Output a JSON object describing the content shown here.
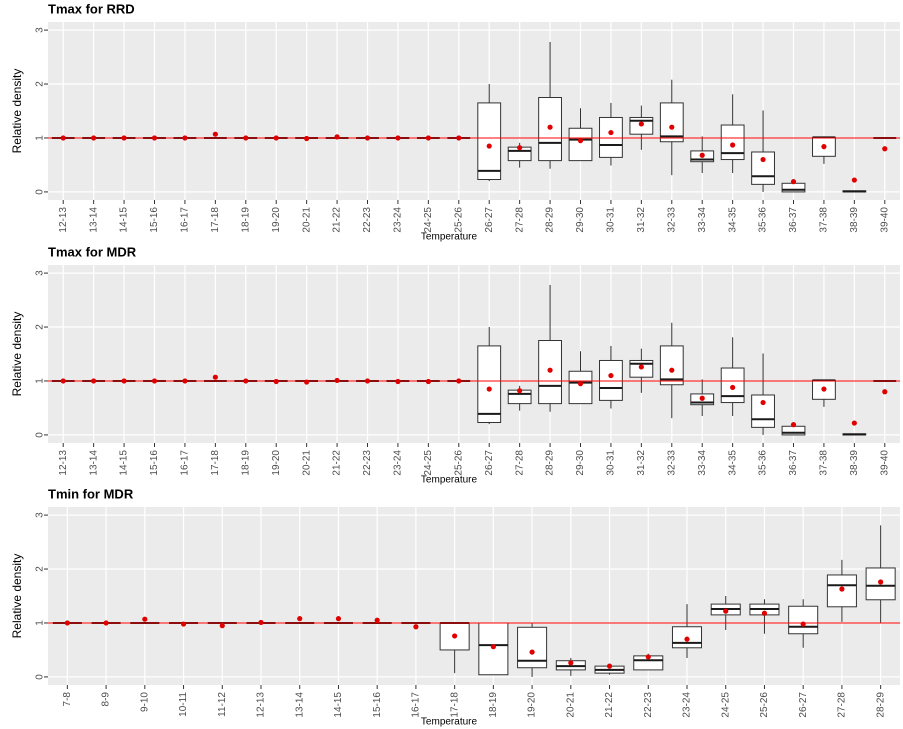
{
  "chart_data": [
    {
      "type": "box",
      "title": "Tmax for RRD",
      "x_label": "Temperature",
      "y_label": "Relative density",
      "categories": [
        "12-13",
        "13-14",
        "14-15",
        "15-16",
        "16-17",
        "17-18",
        "18-19",
        "19-20",
        "20-21",
        "21-22",
        "22-23",
        "23-24",
        "24-25",
        "25-26",
        "26-27",
        "27-28",
        "28-29",
        "29-30",
        "30-31",
        "31-32",
        "32-33",
        "33-34",
        "34-35",
        "35-36",
        "36-37",
        "37-38",
        "38-39",
        "39-40"
      ],
      "min": [
        1,
        1,
        1,
        1,
        1,
        1,
        1,
        1,
        1,
        1,
        1,
        1,
        1,
        1,
        0.2,
        0.45,
        0.43,
        0.58,
        0.49,
        0.78,
        0.31,
        0.35,
        0.35,
        0,
        0,
        0.52,
        0,
        1
      ],
      "q1": [
        1,
        1,
        1,
        1,
        1,
        1,
        1,
        1,
        1,
        1,
        1,
        1,
        1,
        1,
        0.23,
        0.58,
        0.58,
        0.58,
        0.64,
        1.07,
        0.93,
        0.56,
        0.6,
        0.14,
        0,
        0.66,
        0,
        1
      ],
      "median": [
        1,
        1,
        1,
        1,
        1,
        1,
        1,
        1,
        1,
        1,
        1,
        1,
        1,
        1,
        0.39,
        0.76,
        0.91,
        0.97,
        0.87,
        1.32,
        1.03,
        0.6,
        0.72,
        0.29,
        0.04,
        1.01,
        0.01,
        1
      ],
      "q3": [
        1,
        1,
        1,
        1,
        1,
        1,
        1,
        1,
        1,
        1,
        1,
        1,
        1,
        1,
        1.65,
        0.83,
        1.75,
        1.18,
        1.38,
        1.38,
        1.65,
        0.76,
        1.24,
        0.74,
        0.16,
        1.01,
        0.02,
        1
      ],
      "max": [
        1,
        1,
        1,
        1,
        1,
        1,
        1,
        1,
        1,
        1,
        1,
        1,
        1,
        1,
        2.0,
        0.91,
        2.78,
        1.55,
        1.65,
        1.6,
        2.08,
        1.03,
        1.81,
        1.51,
        0.23,
        1.01,
        0.02,
        1
      ],
      "mean": [
        1,
        1,
        1,
        1,
        1,
        1.07,
        1,
        1,
        0.99,
        1.02,
        1,
        1,
        1,
        1,
        0.85,
        0.82,
        1.2,
        0.95,
        1.1,
        1.26,
        1.2,
        0.68,
        0.87,
        0.6,
        0.19,
        0.84,
        0.22,
        0.8
      ],
      "ylim": [
        -0.15,
        3.15
      ],
      "yticks": [
        0,
        1,
        2,
        3
      ],
      "reference_line": 1,
      "reference_color": "#ff0000",
      "mean_color": "#e00000",
      "box_fill": "#ffffff",
      "grid": true
    },
    {
      "type": "box",
      "title": "Tmax for MDR",
      "x_label": "Temperature",
      "y_label": "Relative density",
      "categories": [
        "12-13",
        "13-14",
        "14-15",
        "15-16",
        "16-17",
        "17-18",
        "18-19",
        "19-20",
        "20-21",
        "21-22",
        "22-23",
        "23-24",
        "24-25",
        "25-26",
        "26-27",
        "27-28",
        "28-29",
        "29-30",
        "30-31",
        "31-32",
        "32-33",
        "33-34",
        "34-35",
        "35-36",
        "36-37",
        "37-38",
        "38-39",
        "39-40"
      ],
      "min": [
        1,
        1,
        1,
        1,
        1,
        1,
        1,
        1,
        1,
        1,
        1,
        1,
        1,
        1,
        0.2,
        0.45,
        0.43,
        0.58,
        0.49,
        0.78,
        0.31,
        0.35,
        0.35,
        0,
        0,
        0.52,
        0,
        1
      ],
      "q1": [
        1,
        1,
        1,
        1,
        1,
        1,
        1,
        1,
        1,
        1,
        1,
        1,
        1,
        1,
        0.23,
        0.58,
        0.58,
        0.58,
        0.64,
        1.07,
        0.93,
        0.56,
        0.6,
        0.14,
        0,
        0.66,
        0,
        1
      ],
      "median": [
        1,
        1,
        1,
        1,
        1,
        1,
        1,
        1,
        1,
        1,
        1,
        1,
        1,
        1,
        0.39,
        0.76,
        0.91,
        0.97,
        0.87,
        1.32,
        1.03,
        0.6,
        0.72,
        0.29,
        0.04,
        1.01,
        0.01,
        1
      ],
      "q3": [
        1,
        1,
        1,
        1,
        1,
        1,
        1,
        1,
        1,
        1,
        1,
        1,
        1,
        1,
        1.65,
        0.83,
        1.75,
        1.18,
        1.38,
        1.38,
        1.65,
        0.76,
        1.24,
        0.74,
        0.16,
        1.01,
        0.02,
        1
      ],
      "max": [
        1,
        1,
        1,
        1,
        1,
        1,
        1,
        1,
        1,
        1,
        1,
        1,
        1,
        1,
        2.0,
        0.91,
        2.78,
        1.55,
        1.65,
        1.6,
        2.08,
        1.03,
        1.81,
        1.51,
        0.23,
        1.01,
        0.02,
        1
      ],
      "mean": [
        1,
        1,
        1,
        1,
        1,
        1.07,
        1,
        0.99,
        0.98,
        1.01,
        1,
        0.99,
        0.99,
        1,
        0.85,
        0.82,
        1.2,
        0.95,
        1.1,
        1.26,
        1.2,
        0.68,
        0.88,
        0.6,
        0.19,
        0.85,
        0.22,
        0.8
      ],
      "ylim": [
        -0.15,
        3.15
      ],
      "yticks": [
        0,
        1,
        2,
        3
      ],
      "reference_line": 1,
      "reference_color": "#ff0000",
      "mean_color": "#e00000",
      "box_fill": "#ffffff",
      "grid": true
    },
    {
      "type": "box",
      "title": "Tmin for MDR",
      "x_label": "Temperature",
      "y_label": "Relative density",
      "categories": [
        "7-8",
        "8-9",
        "9-10",
        "10-11",
        "11-12",
        "12-13",
        "13-14",
        "14-15",
        "15-16",
        "16-17",
        "17-18",
        "18-19",
        "19-20",
        "20-21",
        "21-22",
        "22-23",
        "23-24",
        "24-25",
        "25-26",
        "26-27",
        "27-28",
        "28-29"
      ],
      "min": [
        1,
        1,
        1,
        1,
        1,
        1,
        1,
        1,
        1,
        1,
        0.07,
        0.04,
        0,
        0.02,
        0.04,
        0.13,
        0.35,
        0.87,
        0.8,
        0.54,
        1.02,
        1
      ],
      "q1": [
        1,
        1,
        1,
        1,
        1,
        1,
        1,
        1,
        1,
        1,
        0.5,
        0.04,
        0.17,
        0.13,
        0.07,
        0.13,
        0.54,
        1.15,
        1.15,
        0.8,
        1.3,
        1.43
      ],
      "median": [
        1,
        1,
        1,
        1,
        1,
        1,
        1,
        1,
        1,
        1,
        1,
        0.59,
        0.3,
        0.2,
        0.13,
        0.31,
        0.63,
        1.26,
        1.26,
        0.93,
        1.7,
        1.69
      ],
      "q3": [
        1,
        1,
        1,
        1,
        1,
        1,
        1,
        1,
        1,
        1,
        1,
        1,
        0.92,
        0.3,
        0.2,
        0.39,
        0.93,
        1.35,
        1.35,
        1.31,
        1.89,
        2.02
      ],
      "max": [
        1,
        1,
        1,
        1,
        1,
        1,
        1,
        1,
        1,
        1,
        1,
        1,
        1,
        0.35,
        0.2,
        0.43,
        1.35,
        1.5,
        1.44,
        1.44,
        2.17,
        2.81
      ],
      "mean": [
        1,
        1,
        1.07,
        0.98,
        0.95,
        1.01,
        1.08,
        1.08,
        1.05,
        0.93,
        0.76,
        0.56,
        0.46,
        0.26,
        0.2,
        0.37,
        0.7,
        1.22,
        1.18,
        0.98,
        1.63,
        1.76
      ],
      "ylim": [
        -0.15,
        3.15
      ],
      "yticks": [
        0,
        1,
        2,
        3
      ],
      "reference_line": 1,
      "reference_color": "#ff0000",
      "mean_color": "#e00000",
      "box_fill": "#ffffff",
      "grid": true
    }
  ]
}
